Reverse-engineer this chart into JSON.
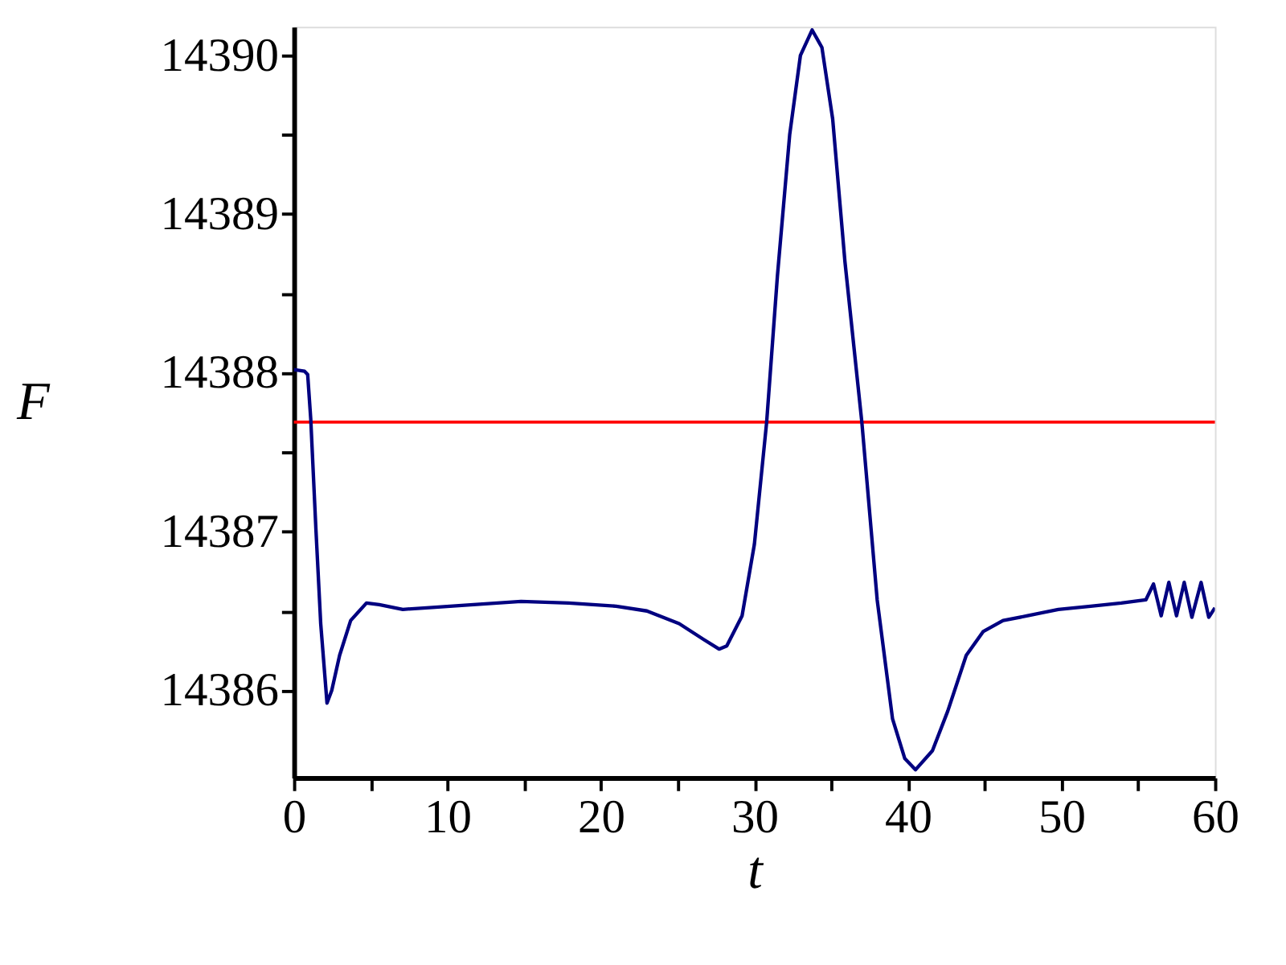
{
  "chart_data": {
    "type": "line",
    "xlabel": "t",
    "ylabel": "F",
    "xlim": [
      0,
      60
    ],
    "ylim": [
      14385.45,
      14390.18
    ],
    "xticks": [
      0,
      {
        "value": 5,
        "label": null
      },
      10,
      {
        "value": 15,
        "label": null
      },
      20,
      {
        "value": 25,
        "label": null
      },
      30,
      {
        "value": 35,
        "label": null
      },
      40,
      {
        "value": 45,
        "label": null
      },
      50,
      {
        "value": 55,
        "label": null
      },
      60
    ],
    "yticks": [
      14386,
      {
        "value": 14386.5,
        "label": null
      },
      14387,
      {
        "value": 14387.5,
        "label": null
      },
      14388,
      {
        "value": 14388.5,
        "label": null
      },
      14389,
      {
        "value": 14389.5,
        "label": null
      },
      14390
    ],
    "grid": false,
    "marker": "none",
    "line_style": "solid",
    "ref_lines": [
      {
        "axis": "y",
        "value": 14387.69,
        "color": "#ff0000"
      }
    ],
    "series": [
      {
        "color": "#000080",
        "x": [
          0,
          0.7,
          0.9,
          1.1,
          1.44,
          1.75,
          2.16,
          2.47,
          2.98,
          3.7,
          4.73,
          5.56,
          7.1,
          8.64,
          11.7,
          14.8,
          17.9,
          21,
          23,
          25.1,
          26.7,
          27.7,
          28.2,
          29.2,
          30.0,
          30.8,
          31.5,
          32.3,
          33.0,
          33.76,
          34.4,
          35.1,
          35.9,
          37.0,
          38.0,
          39.0,
          39.8,
          40.5,
          41.6,
          42.6,
          43.8,
          44.9,
          46.2,
          47.8,
          49.8,
          51.9,
          53.9,
          55.5,
          56.0,
          56.5,
          57.0,
          57.5,
          58.0,
          58.5,
          59.1,
          59.6,
          60
        ],
        "values": [
          14388.02,
          14388.01,
          14387.99,
          14387.71,
          14387.01,
          14386.42,
          14385.92,
          14386.0,
          14386.22,
          14386.44,
          14386.55,
          14386.54,
          14386.51,
          14386.52,
          14386.54,
          14386.56,
          14386.55,
          14386.53,
          14386.5,
          14386.42,
          14386.32,
          14386.26,
          14386.28,
          14386.47,
          14386.92,
          14387.69,
          14388.61,
          14389.5,
          14390.0,
          14390.16,
          14390.05,
          14389.6,
          14388.7,
          14387.69,
          14386.57,
          14385.82,
          14385.57,
          14385.5,
          14385.62,
          14385.87,
          14386.22,
          14386.37,
          14386.44,
          14386.47,
          14386.51,
          14386.53,
          14386.55,
          14386.57,
          14386.67,
          14386.47,
          14386.68,
          14386.47,
          14386.68,
          14386.46,
          14386.68,
          14386.46,
          14386.52
        ]
      }
    ]
  }
}
